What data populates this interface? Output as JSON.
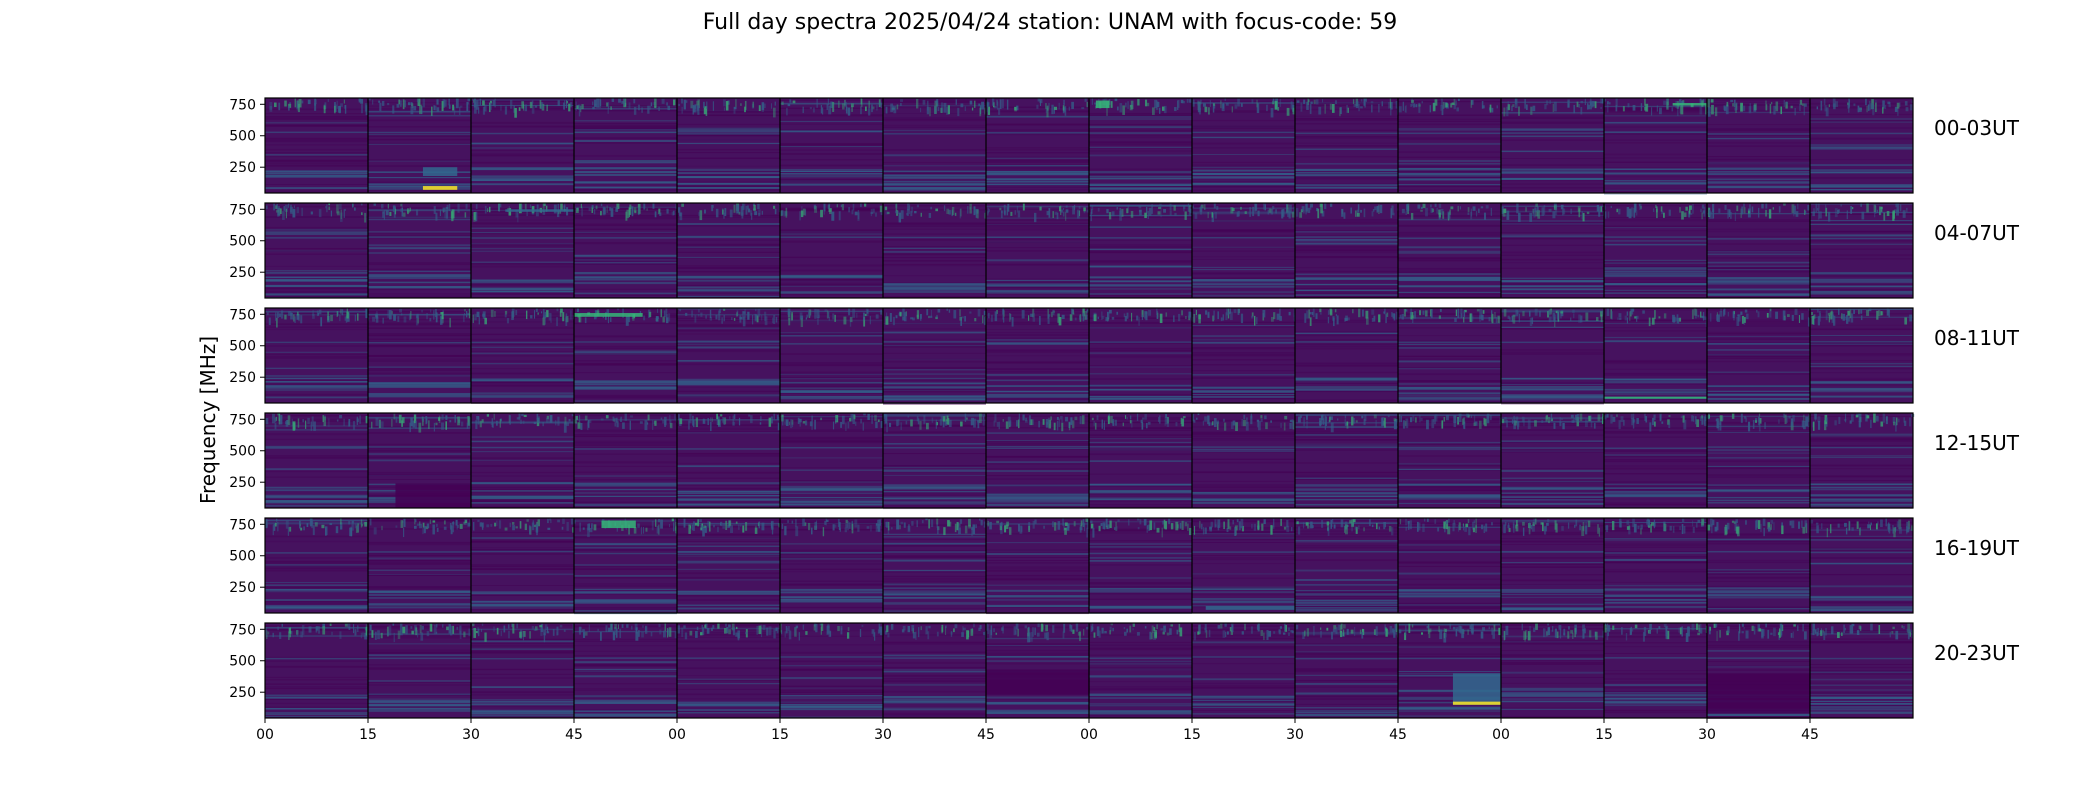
{
  "chart_data": {
    "type": "heatmap",
    "title": "Full day spectra 2025/04/24 station: UNAM with focus-code: 59",
    "ylabel": "Frequency [MHz]",
    "xlabel": "",
    "colormap": "viridis",
    "yticks": [
      250,
      500,
      750
    ],
    "ylim": [
      45,
      800
    ],
    "xticks": [
      "00",
      "15",
      "30",
      "45",
      "00",
      "15",
      "30",
      "45",
      "00",
      "15",
      "30",
      "45",
      "00",
      "15",
      "30",
      "45"
    ],
    "rows": [
      {
        "label": "00-03UT",
        "hours": [
          0,
          1,
          2,
          3
        ]
      },
      {
        "label": "04-07UT",
        "hours": [
          4,
          5,
          6,
          7
        ]
      },
      {
        "label": "08-11UT",
        "hours": [
          8,
          9,
          10,
          11
        ]
      },
      {
        "label": "12-15UT",
        "hours": [
          12,
          13,
          14,
          15
        ]
      },
      {
        "label": "16-19UT",
        "hours": [
          16,
          17,
          18,
          19
        ]
      },
      {
        "label": "20-23UT",
        "hours": [
          20,
          21,
          22,
          23
        ]
      }
    ],
    "panels_per_row": 16,
    "panel_minutes": 15,
    "colors": {
      "background": "#46125f",
      "low": "#440154",
      "mid": "#31688e",
      "high": "#35b779",
      "peak": "#fde725"
    },
    "features": [
      {
        "row": 0,
        "panel": 1,
        "minutes": [
          8,
          13
        ],
        "freq": [
          70,
          100
        ],
        "level": "peak"
      },
      {
        "row": 0,
        "panel": 1,
        "minutes": [
          8,
          13
        ],
        "freq": [
          180,
          250
        ],
        "level": "mid"
      },
      {
        "row": 0,
        "panel": 8,
        "minutes": [
          1,
          3
        ],
        "freq": [
          720,
          780
        ],
        "level": "high"
      },
      {
        "row": 0,
        "panel": 13,
        "minutes": [
          10,
          15
        ],
        "freq": [
          740,
          760
        ],
        "level": "high"
      },
      {
        "row": 1,
        "panel": 2,
        "minutes": [
          5,
          15
        ],
        "freq": [
          730,
          750
        ],
        "level": "mid"
      },
      {
        "row": 2,
        "panel": 3,
        "minutes": [
          0,
          10
        ],
        "freq": [
          730,
          760
        ],
        "level": "high"
      },
      {
        "row": 2,
        "panel": 13,
        "minutes": [
          0,
          15
        ],
        "freq": [
          80,
          95
        ],
        "level": "high"
      },
      {
        "row": 3,
        "panel": 1,
        "minutes": [
          4,
          15
        ],
        "freq": [
          50,
          240
        ],
        "level": "low"
      },
      {
        "row": 4,
        "panel": 3,
        "minutes": [
          4,
          9
        ],
        "freq": [
          720,
          780
        ],
        "level": "high"
      },
      {
        "row": 4,
        "panel": 9,
        "minutes": [
          2,
          15
        ],
        "freq": [
          70,
          100
        ],
        "level": "mid"
      },
      {
        "row": 5,
        "panel": 11,
        "minutes": [
          8,
          15
        ],
        "freq": [
          150,
          400
        ],
        "level": "mid"
      },
      {
        "row": 5,
        "panel": 11,
        "minutes": [
          8,
          15
        ],
        "freq": [
          150,
          175
        ],
        "level": "peak"
      },
      {
        "row": 5,
        "panel": 7,
        "minutes": [
          0,
          15
        ],
        "freq": [
          230,
          430
        ],
        "level": "low"
      },
      {
        "row": 5,
        "panel": 14,
        "minutes": [
          0,
          15
        ],
        "freq": [
          80,
          400
        ],
        "level": "low"
      }
    ]
  }
}
